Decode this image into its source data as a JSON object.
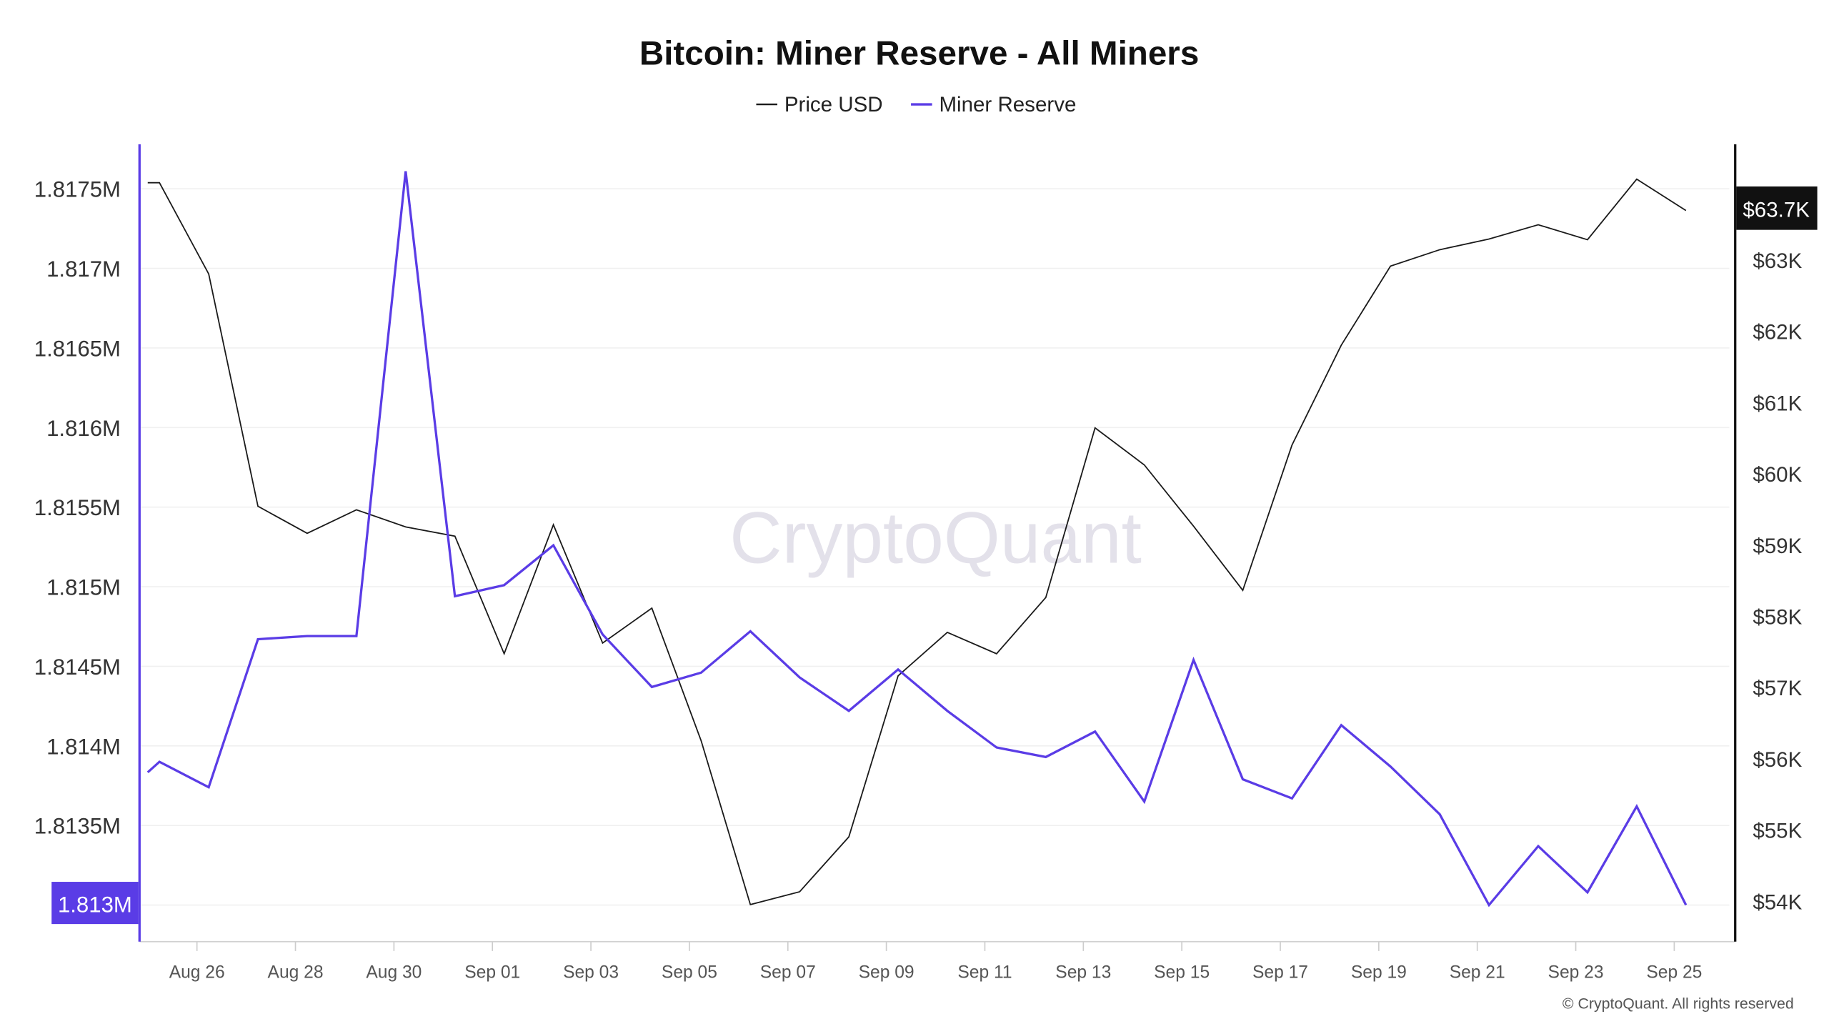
{
  "chart_data": {
    "type": "line",
    "title": "Bitcoin: Miner Reserve - All Miners",
    "watermark": "CryptoQuant",
    "copyright": "© CryptoQuant. All rights reserved",
    "legend": {
      "placement": "top-center"
    },
    "grid": true,
    "x": [
      "Aug 25",
      "Aug 26",
      "Aug 27",
      "Aug 28",
      "Aug 29",
      "Aug 30",
      "Aug 31",
      "Sep 01",
      "Sep 02",
      "Sep 03",
      "Sep 04",
      "Sep 05",
      "Sep 06",
      "Sep 07",
      "Sep 08",
      "Sep 09",
      "Sep 10",
      "Sep 11",
      "Sep 12",
      "Sep 13",
      "Sep 14",
      "Sep 15",
      "Sep 16",
      "Sep 17",
      "Sep 18",
      "Sep 19",
      "Sep 20",
      "Sep 21",
      "Sep 22",
      "Sep 23",
      "Sep 24",
      "Sep 25"
    ],
    "x_tick_labels": [
      "Aug 26",
      "Aug 28",
      "Aug 30",
      "Sep 01",
      "Sep 03",
      "Sep 05",
      "Sep 07",
      "Sep 09",
      "Sep 11",
      "Sep 13",
      "Sep 15",
      "Sep 17",
      "Sep 19",
      "Sep 21",
      "Sep 23",
      "Sep 25"
    ],
    "series": [
      {
        "name": "Price USD",
        "axis": "right",
        "color": "#1a1a1a",
        "values": [
          64080,
          62800,
          59540,
          59160,
          59490,
          59250,
          59120,
          57470,
          59280,
          57620,
          58110,
          56250,
          53950,
          54130,
          54900,
          57160,
          57770,
          57470,
          58260,
          60640,
          60120,
          59260,
          58360,
          60400,
          61800,
          62910,
          63140,
          63290,
          63490,
          63280,
          64130,
          63690
        ]
      },
      {
        "name": "Miner Reserve",
        "axis": "left",
        "color": "#5a3ce6",
        "values": [
          1.8139,
          1.81374,
          1.81467,
          1.81469,
          1.81469,
          1.81761,
          1.81494,
          1.81501,
          1.81526,
          1.8147,
          1.81437,
          1.81446,
          1.81472,
          1.81443,
          1.81422,
          1.81448,
          1.81422,
          1.81399,
          1.81393,
          1.81409,
          1.81365,
          1.81454,
          1.81379,
          1.81367,
          1.81413,
          1.81387,
          1.81357,
          1.813,
          1.81337,
          1.81308,
          1.81362,
          1.813
        ]
      }
    ],
    "left_axis": {
      "ylim": [
        1.81277,
        1.81778
      ],
      "ticks": [
        1.8175,
        1.817,
        1.8165,
        1.816,
        1.8155,
        1.815,
        1.8145,
        1.814,
        1.8135,
        1.813
      ],
      "tick_labels": [
        "1.8175M",
        "1.817M",
        "1.8165M",
        "1.816M",
        "1.8155M",
        "1.815M",
        "1.8145M",
        "1.814M",
        "1.8135M",
        "1.813M"
      ],
      "current_label": "1.813M",
      "current_color": "#5a3ce6"
    },
    "right_axis": {
      "ylim": [
        53430,
        64620
      ],
      "ticks": [
        63000,
        62000,
        61000,
        60000,
        59000,
        58000,
        57000,
        56000,
        55000,
        54000
      ],
      "tick_labels": [
        "$63K",
        "$62K",
        "$61K",
        "$60K",
        "$59K",
        "$58K",
        "$57K",
        "$56K",
        "$55K",
        "$54K"
      ],
      "current_label": "$63.7K",
      "current_color": "#111111"
    }
  }
}
